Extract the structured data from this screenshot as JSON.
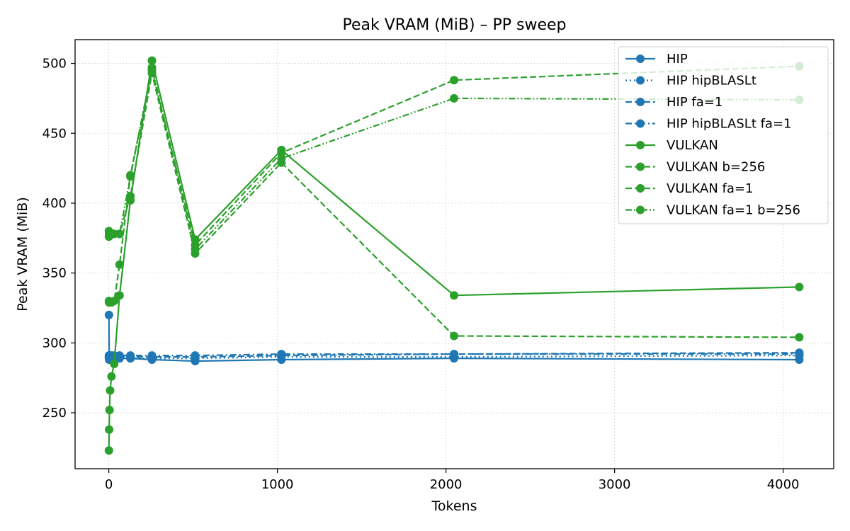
{
  "chart_data": {
    "type": "line",
    "title": "Peak VRAM (MiB) – PP sweep",
    "xlabel": "Tokens",
    "ylabel": "Peak VRAM (MiB)",
    "xlim": [
      -200,
      4300
    ],
    "ylim": [
      210,
      517
    ],
    "xticks": [
      0,
      1000,
      2000,
      3000,
      4000
    ],
    "yticks": [
      250,
      300,
      350,
      400,
      450,
      500
    ],
    "grid": true,
    "legend_position": "top-right",
    "colors": {
      "hip": "#1f77b4",
      "vulkan": "#2ca02c"
    },
    "series": [
      {
        "name": "HIP",
        "color": "#1f77b4",
        "dash": "solid",
        "points": [
          [
            1,
            320
          ],
          [
            2,
            288
          ],
          [
            4,
            288
          ],
          [
            8,
            288
          ],
          [
            16,
            289
          ],
          [
            32,
            289
          ],
          [
            64,
            289
          ],
          [
            128,
            289
          ],
          [
            256,
            288
          ],
          [
            512,
            287
          ],
          [
            1024,
            288
          ],
          [
            2048,
            289
          ],
          [
            4096,
            288
          ]
        ]
      },
      {
        "name": "HIP hipBLASLt",
        "color": "#1f77b4",
        "dash": "dot",
        "points": [
          [
            1,
            289
          ],
          [
            2,
            289
          ],
          [
            4,
            289
          ],
          [
            8,
            289
          ],
          [
            16,
            289
          ],
          [
            32,
            289
          ],
          [
            64,
            289
          ],
          [
            128,
            289
          ],
          [
            256,
            289
          ],
          [
            512,
            289
          ],
          [
            1024,
            290
          ],
          [
            2048,
            290
          ],
          [
            4096,
            291
          ]
        ]
      },
      {
        "name": "HIP fa=1",
        "color": "#1f77b4",
        "dash": "dash",
        "points": [
          [
            1,
            290
          ],
          [
            2,
            290
          ],
          [
            4,
            290
          ],
          [
            8,
            290
          ],
          [
            16,
            290
          ],
          [
            32,
            290
          ],
          [
            64,
            290
          ],
          [
            128,
            290
          ],
          [
            256,
            290
          ],
          [
            512,
            290
          ],
          [
            1024,
            291
          ],
          [
            2048,
            292
          ],
          [
            4096,
            293
          ]
        ]
      },
      {
        "name": "HIP hipBLASLt fa=1",
        "color": "#1f77b4",
        "dash": "dashdot",
        "points": [
          [
            1,
            291
          ],
          [
            2,
            291
          ],
          [
            4,
            291
          ],
          [
            8,
            291
          ],
          [
            16,
            291
          ],
          [
            32,
            291
          ],
          [
            64,
            291
          ],
          [
            128,
            291
          ],
          [
            256,
            291
          ],
          [
            512,
            291
          ],
          [
            1024,
            292
          ],
          [
            2048,
            292
          ],
          [
            4096,
            292
          ]
        ]
      },
      {
        "name": "VULKAN",
        "color": "#2ca02c",
        "dash": "solid",
        "points": [
          [
            1,
            223
          ],
          [
            2,
            238
          ],
          [
            4,
            252
          ],
          [
            8,
            266
          ],
          [
            16,
            276
          ],
          [
            32,
            285
          ],
          [
            64,
            334
          ],
          [
            128,
            402
          ],
          [
            256,
            502
          ],
          [
            512,
            374
          ],
          [
            1024,
            438
          ],
          [
            2048,
            334
          ],
          [
            4096,
            340
          ]
        ]
      },
      {
        "name": "VULKAN b=256",
        "color": "#2ca02c",
        "dash": "dash",
        "points": [
          [
            1,
            330
          ],
          [
            2,
            329
          ],
          [
            4,
            329
          ],
          [
            8,
            329
          ],
          [
            16,
            329
          ],
          [
            32,
            330
          ],
          [
            64,
            356
          ],
          [
            128,
            420
          ],
          [
            256,
            495
          ],
          [
            512,
            370
          ],
          [
            1024,
            436
          ],
          [
            2048,
            488
          ],
          [
            4096,
            498
          ]
        ]
      },
      {
        "name": "VULKAN fa=1",
        "color": "#2ca02c",
        "dash": "dash",
        "points": [
          [
            1,
            380
          ],
          [
            2,
            379
          ],
          [
            4,
            378
          ],
          [
            8,
            378
          ],
          [
            16,
            378
          ],
          [
            32,
            378
          ],
          [
            64,
            378
          ],
          [
            128,
            405
          ],
          [
            256,
            493
          ],
          [
            512,
            364
          ],
          [
            1024,
            429
          ],
          [
            2048,
            305
          ],
          [
            4096,
            304
          ]
        ]
      },
      {
        "name": "VULKAN fa=1 b=256",
        "color": "#2ca02c",
        "dash": "dashdotdot",
        "points": [
          [
            1,
            376
          ],
          [
            2,
            378
          ],
          [
            4,
            378
          ],
          [
            8,
            378
          ],
          [
            16,
            378
          ],
          [
            32,
            378
          ],
          [
            64,
            378
          ],
          [
            128,
            419
          ],
          [
            256,
            497
          ],
          [
            512,
            367
          ],
          [
            1024,
            432
          ],
          [
            2048,
            475
          ],
          [
            4096,
            474
          ]
        ]
      }
    ]
  }
}
